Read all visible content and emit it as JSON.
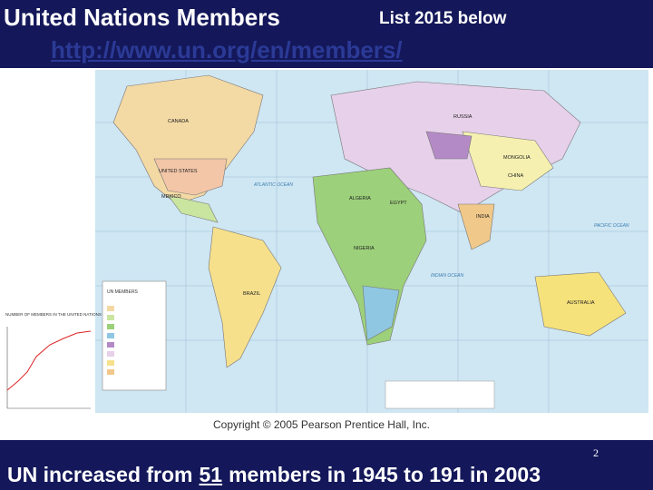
{
  "header": {
    "title": "United Nations Members",
    "subtitle": "List 2015 below",
    "link": "http://www.un.org/en/members/"
  },
  "map": {
    "labels": [
      "CANADA",
      "UNITED STATES",
      "MEXICO",
      "BRAZIL",
      "RUSSIA",
      "MONGOLIA",
      "CHINA",
      "INDIA",
      "EGYPT",
      "ALGERIA",
      "NIGERIA",
      "AUSTRALIA",
      "ATLANTIC OCEAN",
      "PACIFIC OCEAN",
      "INDIAN OCEAN"
    ],
    "legend_title": "UN MEMBERS",
    "inset_title": "NUMBER OF MEMBERS IN THE UNITED NATIONS",
    "copyright": "Copyright © 2005 Pearson Prentice Hall, Inc."
  },
  "slide_number": "2",
  "footer": {
    "before": "UN increased from",
    "number": "51",
    "after": "members in 1945 to 191 in 2003"
  }
}
